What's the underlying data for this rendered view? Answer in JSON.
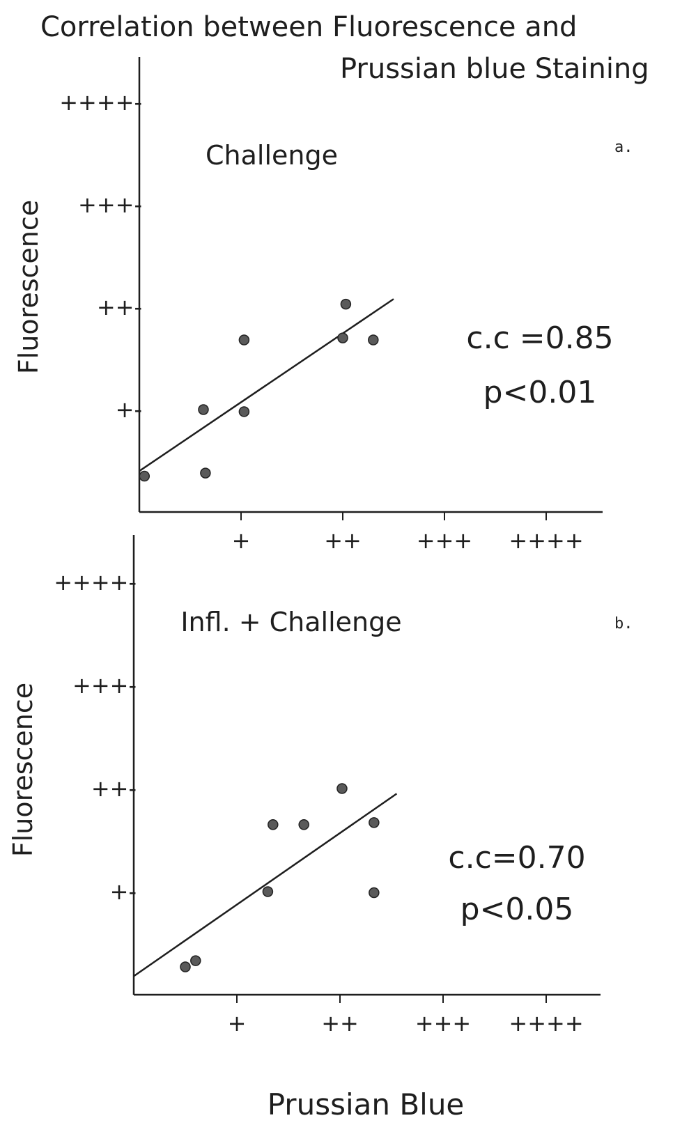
{
  "figure": {
    "title_line1": "Correlation between Fluorescence and",
    "title_line2": "Prussian blue Staining",
    "xlabel": "Prussian Blue"
  },
  "chart_data": [
    {
      "type": "scatter",
      "panel_label": "a.",
      "annotation": "Challenge",
      "ylabel": "Fluorescence",
      "x_ticks": [
        {
          "value": 1,
          "label": "+"
        },
        {
          "value": 2,
          "label": "++"
        },
        {
          "value": 3,
          "label": "+++"
        },
        {
          "value": 4,
          "label": "++++"
        }
      ],
      "y_ticks": [
        {
          "value": 1,
          "label": "+-"
        },
        {
          "value": 2,
          "label": "++-"
        },
        {
          "value": 3,
          "label": "+++-"
        },
        {
          "value": 4,
          "label": "++++-"
        }
      ],
      "xlim": [
        0,
        4.5
      ],
      "ylim": [
        0,
        4.4
      ],
      "points": [
        {
          "x": 0.05,
          "y": 0.35
        },
        {
          "x": 0.63,
          "y": 1.0
        },
        {
          "x": 0.65,
          "y": 0.38
        },
        {
          "x": 1.03,
          "y": 1.68
        },
        {
          "x": 1.03,
          "y": 0.98
        },
        {
          "x": 2.03,
          "y": 2.03
        },
        {
          "x": 2.0,
          "y": 1.7
        },
        {
          "x": 2.3,
          "y": 1.68
        }
      ],
      "fit_line": {
        "x": [
          0,
          2.5
        ],
        "y": [
          0.4,
          2.08
        ]
      },
      "stats": [
        "c.c =0.85",
        "p<0.01"
      ]
    },
    {
      "type": "scatter",
      "panel_label": "b.",
      "annotation": "Infl. + Challenge",
      "ylabel": "Fluorescence",
      "x_ticks": [
        {
          "value": 1,
          "label": "+"
        },
        {
          "value": 2,
          "label": "++"
        },
        {
          "value": 3,
          "label": "+++"
        },
        {
          "value": 4,
          "label": "++++"
        }
      ],
      "y_ticks": [
        {
          "value": 1,
          "label": "+-"
        },
        {
          "value": 2,
          "label": "++-"
        },
        {
          "value": 3,
          "label": "+++-"
        },
        {
          "value": 4,
          "label": "++++-"
        }
      ],
      "xlim": [
        0,
        4.5
      ],
      "ylim": [
        0,
        4.4
      ],
      "points": [
        {
          "x": 0.5,
          "y": 0.27
        },
        {
          "x": 0.6,
          "y": 0.33
        },
        {
          "x": 1.35,
          "y": 1.65
        },
        {
          "x": 1.3,
          "y": 1.0
        },
        {
          "x": 1.65,
          "y": 1.65
        },
        {
          "x": 2.02,
          "y": 2.0
        },
        {
          "x": 2.33,
          "y": 1.67
        },
        {
          "x": 2.33,
          "y": 0.99
        }
      ],
      "fit_line": {
        "x": [
          0,
          2.55
        ],
        "y": [
          0.18,
          1.95
        ]
      },
      "stats": [
        "c.c=0.70",
        "p<0.05"
      ]
    }
  ]
}
